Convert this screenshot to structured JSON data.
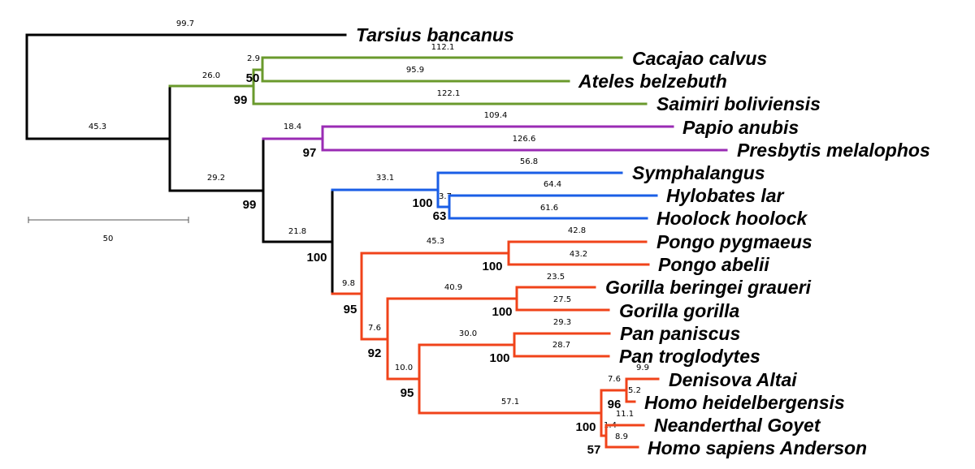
{
  "colors": {
    "outgroup": "#000000",
    "new_world_monkeys": "#6a9a2c",
    "old_world_monkeys": "#9a2bb4",
    "gibbons": "#1a5ee6",
    "great_apes": "#f0431a"
  },
  "taxa": {
    "tarsius": "Tarsius bancanus",
    "cacajao": "Cacajao calvus",
    "ateles": "Ateles belzebuth",
    "saimiri": "Saimiri boliviensis",
    "papio": "Papio anubis",
    "presbytis": "Presbytis melalophos",
    "symphalangus": "Symphalangus",
    "hylobates": "Hylobates lar",
    "hoolock": "Hoolock hoolock",
    "pongo_pyg": "Pongo pygmaeus",
    "pongo_abe": "Pongo abelii",
    "gorilla_ber": "Gorilla beringei graueri",
    "gorilla_gor": "Gorilla gorilla",
    "pan_pan": "Pan paniscus",
    "pan_tro": "Pan troglodytes",
    "denisova": "Denisova Altai",
    "heidelberg": "Homo heidelbergensis",
    "neanderthal": "Neanderthal Goyet",
    "sapiens": "Homo sapiens Anderson"
  },
  "branch_lengths": {
    "tarsius": "99.7",
    "ingroup": "45.3",
    "nwm_stem": "26.0",
    "cac_ate": "2.9",
    "cacajao": "112.1",
    "ateles": "95.9",
    "saimiri": "122.1",
    "catarrhini": "29.2",
    "owm_stem": "18.4",
    "papio": "109.4",
    "presbytis": "126.6",
    "hominoidea": "21.8",
    "gibbon_stem": "33.1",
    "symphalangus": "56.8",
    "hyl_hoo": "3.7",
    "hylobates": "64.4",
    "hoolock": "61.6",
    "hominidae": "9.8",
    "pongo_stem": "45.3",
    "pongo_pyg": "42.8",
    "pongo_abe": "43.2",
    "homininae": "7.6",
    "gorilla_stem": "40.9",
    "gorilla_ber": "23.5",
    "gorilla_gor": "27.5",
    "hominini": "10.0",
    "pan_stem": "30.0",
    "pan_pan": "29.3",
    "pan_tro": "28.7",
    "homo_stem": "57.1",
    "den_hei": "7.6",
    "denisova": "9.9",
    "heidelberg": "5.2",
    "neanderthal": "11.1",
    "sapiens": "8.9",
    "homo_inner": "1.4"
  },
  "bootstrap": {
    "cac_ate": "50",
    "nwm": "99",
    "catarrhini": "99",
    "owm": "97",
    "hominoidea": "100",
    "gibbons": "100",
    "hyl_hoo": "63",
    "hominidae": "95",
    "pongo": "100",
    "homininae": "92",
    "gorilla": "100",
    "hominini": "95",
    "pan": "100",
    "den_hei": "96",
    "homo": "100",
    "nea_sap": "57"
  },
  "scale_bar": {
    "label": "50"
  }
}
